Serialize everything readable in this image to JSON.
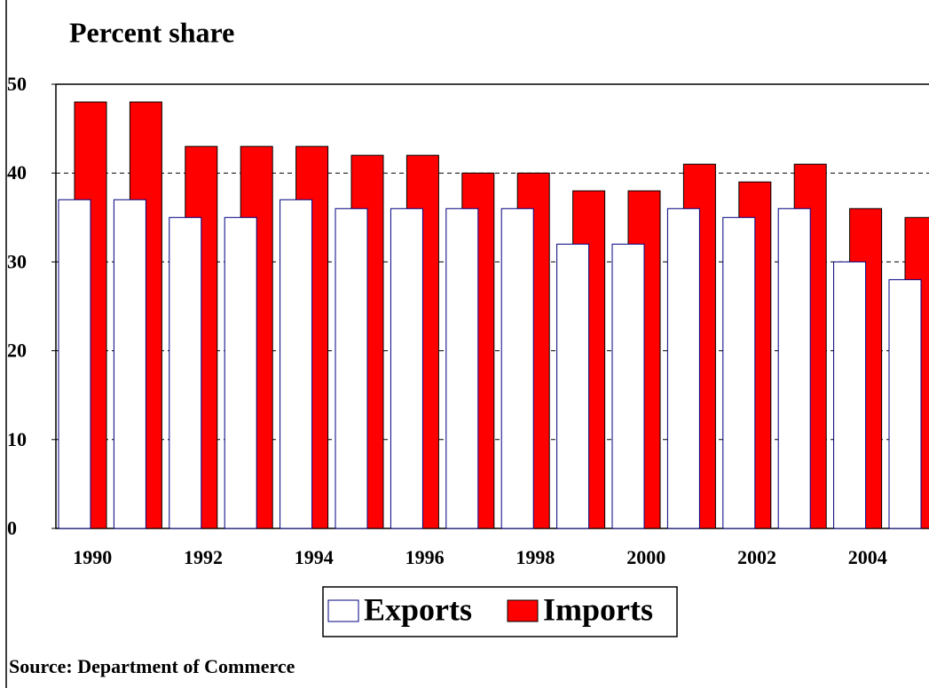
{
  "chart_data": {
    "type": "bar",
    "title": "Percent share",
    "source": "Source: Department of Commerce",
    "categories": [
      "1990",
      null,
      "1992",
      null,
      "1994",
      null,
      "1996",
      null,
      "1998",
      null,
      "2000",
      null,
      "2002",
      null,
      "2004",
      null
    ],
    "series": [
      {
        "name": "Exports",
        "color": "#ffffff",
        "values": [
          37,
          37,
          35,
          35,
          37,
          36,
          36,
          36,
          36,
          32,
          32,
          36,
          35,
          36,
          30,
          28
        ]
      },
      {
        "name": "Imports",
        "color": "#ff0000",
        "values": [
          48,
          48,
          43,
          43,
          43,
          42,
          42,
          40,
          40,
          38,
          38,
          41,
          39,
          41,
          36,
          35
        ]
      }
    ],
    "ylim": [
      0,
      50
    ],
    "yticks": [
      0,
      10,
      20,
      30,
      40,
      50
    ],
    "grid": true
  }
}
